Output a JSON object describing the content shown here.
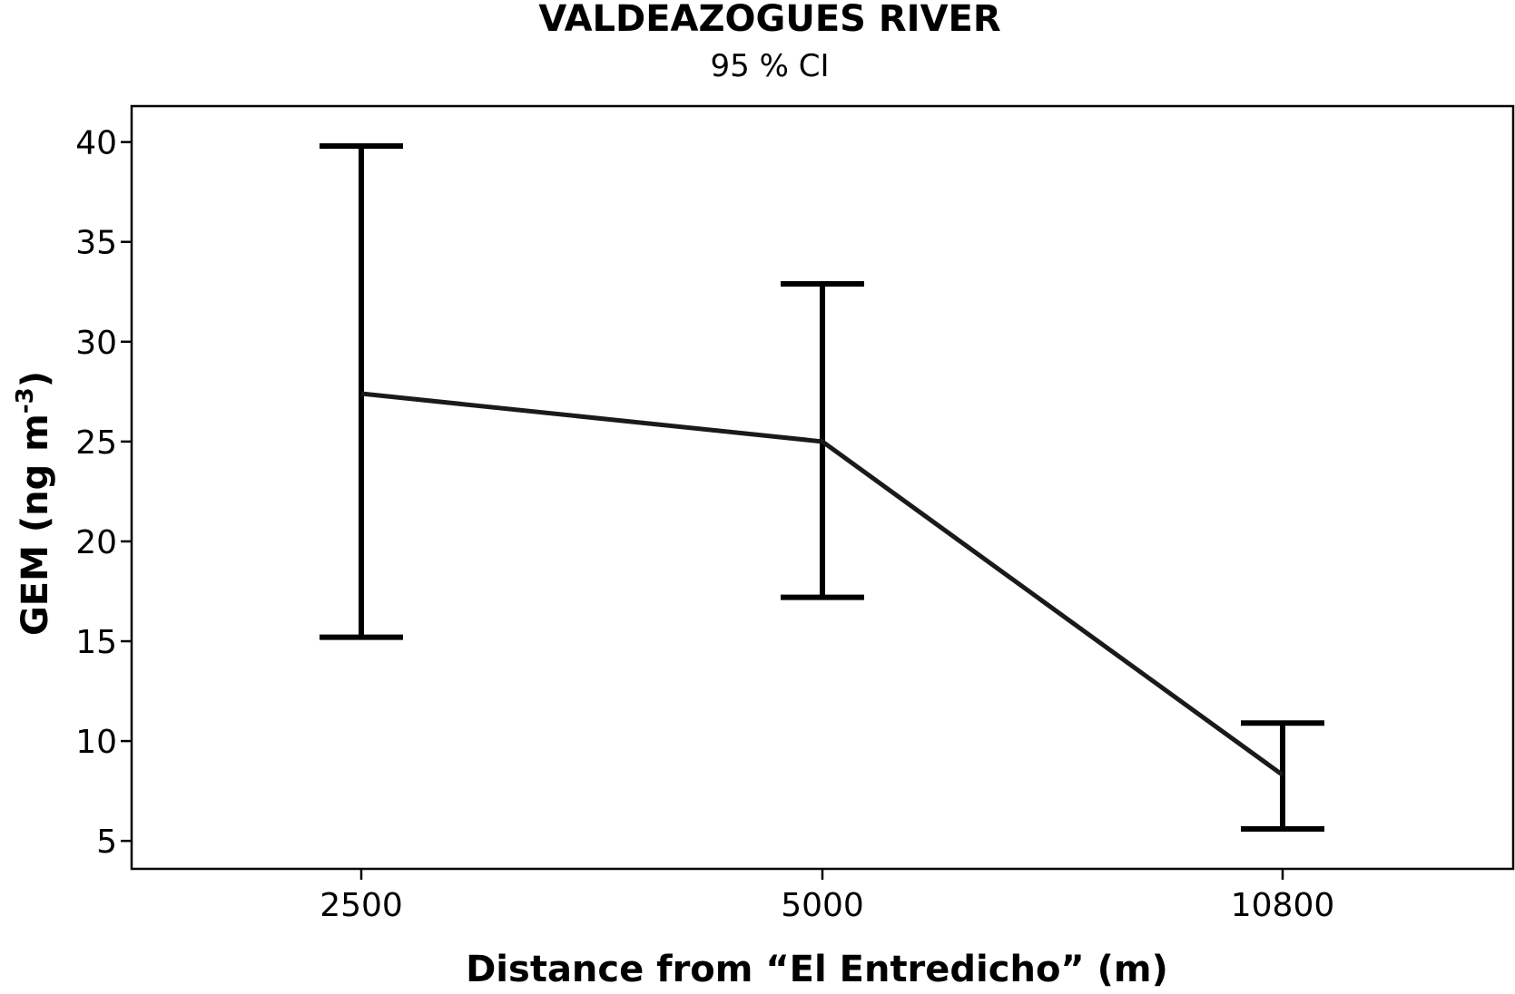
{
  "chart_data": {
    "type": "line",
    "title": "VALDEAZOGUES RIVER",
    "subtitle": "95 % CI",
    "xlabel": "Distance from “El Entredicho” (m)",
    "ylabel": "GEM (ng m",
    "ylabel_superscript": "-3",
    "ylabel_close": ")",
    "categories": [
      "2500",
      "5000",
      "10800"
    ],
    "series": [
      {
        "values": [
          27.4,
          25.0,
          8.3
        ],
        "ci_lower": [
          15.2,
          17.2,
          5.6
        ],
        "ci_upper": [
          39.8,
          32.9,
          10.9
        ]
      }
    ],
    "yticks": [
      5,
      10,
      15,
      20,
      25,
      30,
      35,
      40
    ],
    "ylim": [
      3.6,
      41.8
    ],
    "grid": false
  }
}
